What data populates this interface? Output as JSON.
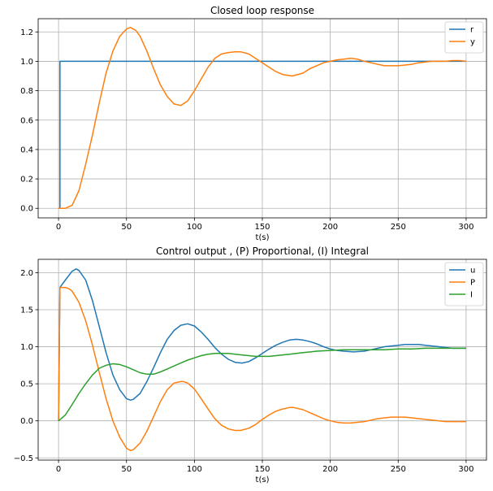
{
  "chart_data": [
    {
      "type": "line",
      "title": "Closed loop response",
      "xlabel": "t(s)",
      "ylabel": "",
      "xlim": [
        -15,
        315
      ],
      "ylim": [
        -0.065,
        1.29
      ],
      "xticks": [
        0,
        50,
        100,
        150,
        200,
        250,
        300
      ],
      "yticks": [
        0.0,
        0.2,
        0.4,
        0.6,
        0.8,
        1.0,
        1.2
      ],
      "ytick_labels": [
        "0.0",
        "0.2",
        "0.4",
        "0.6",
        "0.8",
        "1.0",
        "1.2"
      ],
      "grid": true,
      "legend": "top-right",
      "series": [
        {
          "name": "r",
          "color": "#1f77b4",
          "x": [
            0,
            1,
            1,
            300
          ],
          "y": [
            0.0,
            0.0,
            1.0,
            1.0
          ]
        },
        {
          "name": "y",
          "color": "#ff7f0e",
          "x": [
            0,
            5,
            10,
            15,
            20,
            25,
            30,
            35,
            40,
            45,
            50,
            53,
            57,
            60,
            65,
            70,
            75,
            80,
            85,
            90,
            95,
            100,
            105,
            110,
            115,
            120,
            125,
            130,
            134,
            140,
            145,
            150,
            155,
            160,
            165,
            172,
            180,
            185,
            190,
            195,
            200,
            205,
            210,
            215,
            220,
            225,
            230,
            235,
            240,
            245,
            250,
            255,
            260,
            265,
            270,
            275,
            280,
            285,
            290,
            295,
            300
          ],
          "y": [
            0.0,
            0.0,
            0.02,
            0.12,
            0.3,
            0.5,
            0.72,
            0.92,
            1.07,
            1.17,
            1.22,
            1.23,
            1.21,
            1.17,
            1.07,
            0.95,
            0.84,
            0.76,
            0.71,
            0.7,
            0.73,
            0.8,
            0.88,
            0.96,
            1.02,
            1.05,
            1.06,
            1.065,
            1.065,
            1.05,
            1.02,
            0.99,
            0.96,
            0.93,
            0.91,
            0.9,
            0.92,
            0.95,
            0.97,
            0.99,
            1.0,
            1.01,
            1.015,
            1.02,
            1.015,
            1.0,
            0.99,
            0.98,
            0.97,
            0.97,
            0.97,
            0.975,
            0.98,
            0.99,
            0.995,
            1.0,
            1.0,
            1.0,
            1.005,
            1.005,
            1.0
          ]
        }
      ]
    },
    {
      "type": "line",
      "title": "Control output , (P) Proportional, (I) Integral",
      "xlabel": "t(s)",
      "ylabel": "",
      "xlim": [
        -15,
        315
      ],
      "ylim": [
        -0.53,
        2.18
      ],
      "xticks": [
        0,
        50,
        100,
        150,
        200,
        250,
        300
      ],
      "yticks": [
        -0.5,
        0.0,
        0.5,
        1.0,
        1.5,
        2.0
      ],
      "ytick_labels": [
        "−0.5",
        "0.0",
        "0.5",
        "1.0",
        "1.5",
        "2.0"
      ],
      "grid": true,
      "legend": "top-right",
      "series": [
        {
          "name": "u",
          "color": "#1f77b4",
          "x": [
            0,
            1,
            5,
            10,
            13,
            15,
            20,
            25,
            30,
            35,
            40,
            45,
            50,
            53,
            55,
            60,
            65,
            70,
            75,
            80,
            85,
            90,
            95,
            100,
            105,
            110,
            115,
            120,
            125,
            130,
            135,
            140,
            145,
            150,
            155,
            160,
            165,
            170,
            175,
            180,
            185,
            190,
            195,
            200,
            205,
            210,
            217,
            225,
            230,
            235,
            240,
            245,
            250,
            255,
            260,
            265,
            270,
            275,
            280,
            285,
            290,
            295,
            300
          ],
          "y": [
            0.0,
            1.8,
            1.9,
            2.02,
            2.05,
            2.03,
            1.9,
            1.62,
            1.27,
            0.92,
            0.62,
            0.42,
            0.3,
            0.28,
            0.29,
            0.37,
            0.53,
            0.72,
            0.92,
            1.1,
            1.22,
            1.29,
            1.31,
            1.28,
            1.2,
            1.1,
            0.99,
            0.9,
            0.83,
            0.79,
            0.78,
            0.8,
            0.85,
            0.91,
            0.97,
            1.02,
            1.06,
            1.09,
            1.1,
            1.09,
            1.07,
            1.04,
            1.0,
            0.97,
            0.95,
            0.94,
            0.93,
            0.94,
            0.96,
            0.98,
            1.0,
            1.01,
            1.02,
            1.03,
            1.03,
            1.03,
            1.02,
            1.01,
            1.0,
            0.99,
            0.98,
            0.98,
            0.98
          ]
        },
        {
          "name": "P",
          "color": "#ff7f0e",
          "x": [
            0,
            1,
            5,
            8,
            10,
            15,
            20,
            25,
            30,
            35,
            40,
            45,
            50,
            53,
            55,
            60,
            65,
            70,
            75,
            80,
            85,
            90,
            92,
            95,
            100,
            105,
            110,
            115,
            120,
            125,
            130,
            134,
            140,
            145,
            150,
            155,
            160,
            165,
            170,
            173,
            180,
            185,
            190,
            195,
            200,
            205,
            210,
            215,
            220,
            225,
            230,
            235,
            240,
            245,
            250,
            255,
            260,
            265,
            270,
            275,
            280,
            285,
            290,
            295,
            300
          ],
          "y": [
            0.0,
            1.8,
            1.8,
            1.78,
            1.75,
            1.6,
            1.35,
            1.02,
            0.65,
            0.3,
            0.0,
            -0.22,
            -0.37,
            -0.4,
            -0.39,
            -0.3,
            -0.14,
            0.06,
            0.26,
            0.42,
            0.51,
            0.53,
            0.53,
            0.51,
            0.43,
            0.3,
            0.16,
            0.03,
            -0.06,
            -0.11,
            -0.13,
            -0.13,
            -0.1,
            -0.05,
            0.02,
            0.08,
            0.13,
            0.16,
            0.18,
            0.18,
            0.15,
            0.11,
            0.07,
            0.03,
            0.0,
            -0.02,
            -0.03,
            -0.03,
            -0.02,
            -0.01,
            0.01,
            0.03,
            0.04,
            0.05,
            0.05,
            0.05,
            0.04,
            0.03,
            0.02,
            0.01,
            0.0,
            -0.01,
            -0.01,
            -0.01,
            -0.01
          ]
        },
        {
          "name": "I",
          "color": "#2ca02c",
          "x": [
            0,
            5,
            10,
            15,
            20,
            25,
            30,
            35,
            40,
            45,
            50,
            55,
            60,
            65,
            70,
            75,
            80,
            85,
            90,
            95,
            100,
            105,
            110,
            115,
            120,
            125,
            130,
            135,
            140,
            145,
            150,
            155,
            160,
            165,
            170,
            175,
            180,
            190,
            200,
            210,
            220,
            230,
            240,
            250,
            260,
            270,
            280,
            290,
            300
          ],
          "y": [
            0.0,
            0.08,
            0.22,
            0.37,
            0.5,
            0.62,
            0.71,
            0.75,
            0.77,
            0.76,
            0.73,
            0.69,
            0.65,
            0.63,
            0.63,
            0.66,
            0.7,
            0.74,
            0.78,
            0.82,
            0.85,
            0.88,
            0.9,
            0.91,
            0.91,
            0.91,
            0.9,
            0.89,
            0.88,
            0.87,
            0.87,
            0.87,
            0.88,
            0.89,
            0.9,
            0.91,
            0.92,
            0.94,
            0.95,
            0.96,
            0.96,
            0.96,
            0.96,
            0.97,
            0.97,
            0.98,
            0.98,
            0.98,
            0.98
          ]
        }
      ]
    }
  ]
}
